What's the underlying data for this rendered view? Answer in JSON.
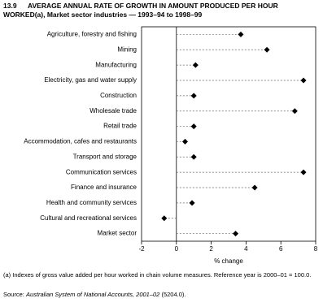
{
  "chart_data": {
    "type": "dot",
    "title_number": "13.9",
    "title": "AVERAGE ANNUAL RATE OF GROWTH IN AMOUNT PRODUCED PER HOUR WORKED(a), Market sector industries — 1993–94 to 1998–99",
    "categories": [
      "Agriculture, forestry and fishing",
      "Mining",
      "Manufacturing",
      "Electricity, gas and water supply",
      "Construction",
      "Wholesale trade",
      "Retail trade",
      "Accommodation, cafes and restaurants",
      "Transport and storage",
      "Communication services",
      "Finance and insurance",
      "Health and community services",
      "Cultural and recreational services",
      "Market sector"
    ],
    "values": [
      3.7,
      5.2,
      1.1,
      7.3,
      1.0,
      6.8,
      1.0,
      0.5,
      1.0,
      7.3,
      4.5,
      0.9,
      -0.7,
      3.4
    ],
    "color": "#000000",
    "xlabel": "% change",
    "xlim": [
      -2,
      8
    ],
    "xticks": [
      -2,
      0,
      2,
      4,
      6,
      8
    ],
    "footnote": "(a) Indexes of gross value added per hour worked in chain volume measures. Reference year is 2000–01 = 100.0.",
    "source_label": "Source:",
    "source_title": "Australian System of National Accounts, 2001–02",
    "source_ref": "(5204.0)."
  }
}
